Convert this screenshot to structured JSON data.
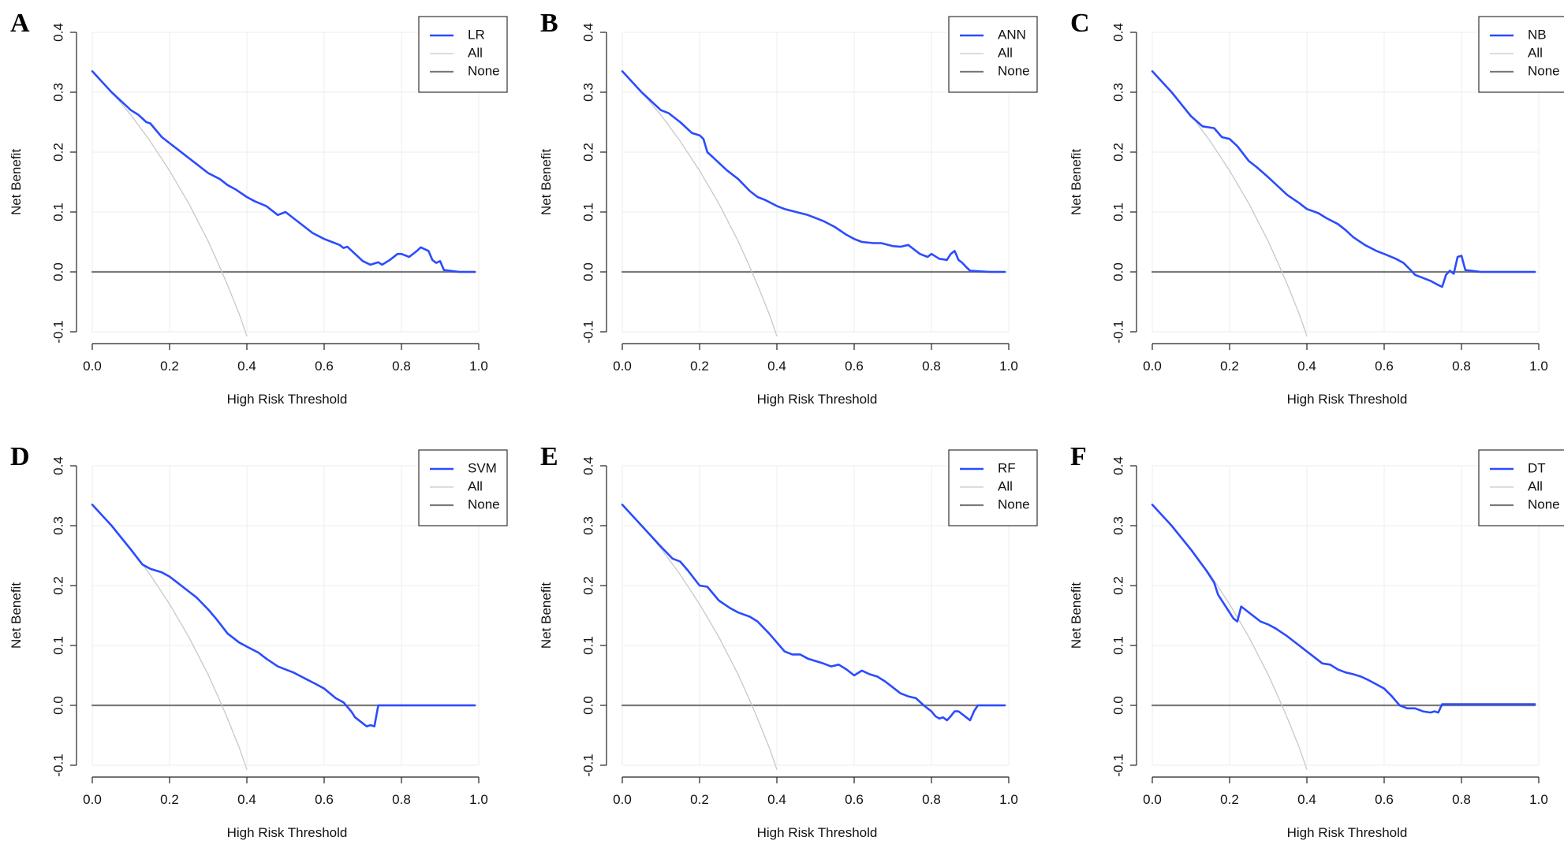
{
  "colors": {
    "model": "#2b4bff",
    "all": "#c8c8c8",
    "none": "#7a7a7a",
    "grid": "#ececec",
    "axis": "#222222"
  },
  "chart_data": [
    {
      "panel": "A",
      "type": "line",
      "xlabel": "High Risk Threshold",
      "ylabel": "Net Benefit",
      "xlim": [
        0,
        1
      ],
      "ylim": [
        -0.1,
        0.4
      ],
      "xticks": [
        "0.0",
        "0.2",
        "0.4",
        "0.6",
        "0.8",
        "1.0"
      ],
      "yticks": [
        "-0.1",
        "0.0",
        "0.1",
        "0.2",
        "0.3",
        "0.4"
      ],
      "legend": [
        "LR",
        "All",
        "None"
      ],
      "series": [
        {
          "name": "LR",
          "x": [
            0,
            0.05,
            0.1,
            0.12,
            0.14,
            0.15,
            0.18,
            0.2,
            0.22,
            0.25,
            0.27,
            0.3,
            0.33,
            0.35,
            0.37,
            0.4,
            0.42,
            0.45,
            0.48,
            0.5,
            0.52,
            0.55,
            0.57,
            0.6,
            0.62,
            0.64,
            0.65,
            0.66,
            0.68,
            0.7,
            0.72,
            0.74,
            0.75,
            0.77,
            0.79,
            0.8,
            0.82,
            0.84,
            0.85,
            0.87,
            0.88,
            0.89,
            0.9,
            0.91,
            0.95,
            0.99
          ],
          "y": [
            0.335,
            0.3,
            0.27,
            0.262,
            0.25,
            0.248,
            0.225,
            0.215,
            0.205,
            0.19,
            0.18,
            0.165,
            0.155,
            0.145,
            0.138,
            0.125,
            0.118,
            0.11,
            0.095,
            0.1,
            0.09,
            0.075,
            0.065,
            0.055,
            0.05,
            0.045,
            0.04,
            0.042,
            0.03,
            0.018,
            0.012,
            0.016,
            0.012,
            0.02,
            0.03,
            0.03,
            0.025,
            0.035,
            0.041,
            0.035,
            0.02,
            0.015,
            0.018,
            0.003,
            0,
            0
          ]
        },
        {
          "name": "All",
          "x": [
            0,
            0.05,
            0.1,
            0.15,
            0.2,
            0.25,
            0.3,
            0.33,
            0.35,
            0.38,
            0.4
          ],
          "y": [
            0.335,
            0.3,
            0.262,
            0.218,
            0.169,
            0.114,
            0.051,
            0.008,
            -0.022,
            -0.07,
            -0.107
          ]
        },
        {
          "name": "None",
          "x": [
            0,
            0.99
          ],
          "y": [
            0,
            0
          ]
        }
      ]
    },
    {
      "panel": "B",
      "type": "line",
      "xlabel": "High Risk Threshold",
      "ylabel": "Net Benefit",
      "xlim": [
        0,
        1
      ],
      "ylim": [
        -0.1,
        0.4
      ],
      "xticks": [
        "0.0",
        "0.2",
        "0.4",
        "0.6",
        "0.8",
        "1.0"
      ],
      "yticks": [
        "-0.1",
        "0.0",
        "0.1",
        "0.2",
        "0.3",
        "0.4"
      ],
      "legend": [
        "ANN",
        "All",
        "None"
      ],
      "series": [
        {
          "name": "ANN",
          "x": [
            0,
            0.05,
            0.1,
            0.12,
            0.15,
            0.18,
            0.2,
            0.21,
            0.22,
            0.24,
            0.27,
            0.3,
            0.33,
            0.35,
            0.37,
            0.4,
            0.42,
            0.45,
            0.48,
            0.5,
            0.52,
            0.55,
            0.58,
            0.6,
            0.62,
            0.65,
            0.67,
            0.7,
            0.72,
            0.74,
            0.75,
            0.77,
            0.79,
            0.8,
            0.82,
            0.84,
            0.85,
            0.86,
            0.87,
            0.88,
            0.89,
            0.9,
            0.95,
            0.99
          ],
          "y": [
            0.335,
            0.3,
            0.27,
            0.265,
            0.25,
            0.232,
            0.228,
            0.222,
            0.2,
            0.188,
            0.17,
            0.155,
            0.135,
            0.125,
            0.12,
            0.11,
            0.105,
            0.1,
            0.095,
            0.09,
            0.085,
            0.075,
            0.062,
            0.055,
            0.05,
            0.048,
            0.048,
            0.043,
            0.042,
            0.045,
            0.04,
            0.03,
            0.025,
            0.03,
            0.022,
            0.02,
            0.03,
            0.035,
            0.02,
            0.015,
            0.008,
            0.002,
            0,
            0
          ]
        },
        {
          "name": "All",
          "x": [
            0,
            0.05,
            0.1,
            0.15,
            0.2,
            0.25,
            0.3,
            0.33,
            0.35,
            0.38,
            0.4
          ],
          "y": [
            0.335,
            0.3,
            0.262,
            0.218,
            0.169,
            0.114,
            0.051,
            0.008,
            -0.022,
            -0.07,
            -0.107
          ]
        },
        {
          "name": "None",
          "x": [
            0,
            0.99
          ],
          "y": [
            0,
            0
          ]
        }
      ]
    },
    {
      "panel": "C",
      "type": "line",
      "xlabel": "High Risk Threshold",
      "ylabel": "Net Benefit",
      "xlim": [
        0,
        1
      ],
      "ylim": [
        -0.1,
        0.4
      ],
      "xticks": [
        "0.0",
        "0.2",
        "0.4",
        "0.6",
        "0.8",
        "1.0"
      ],
      "yticks": [
        "-0.1",
        "0.0",
        "0.1",
        "0.2",
        "0.3",
        "0.4"
      ],
      "legend": [
        "NB",
        "All",
        "None"
      ],
      "series": [
        {
          "name": "NB",
          "x": [
            0,
            0.05,
            0.1,
            0.13,
            0.16,
            0.18,
            0.2,
            0.22,
            0.25,
            0.27,
            0.3,
            0.33,
            0.35,
            0.38,
            0.4,
            0.43,
            0.45,
            0.48,
            0.5,
            0.52,
            0.55,
            0.58,
            0.6,
            0.63,
            0.65,
            0.67,
            0.68,
            0.7,
            0.72,
            0.74,
            0.75,
            0.76,
            0.77,
            0.78,
            0.79,
            0.8,
            0.81,
            0.85,
            0.99
          ],
          "y": [
            0.335,
            0.3,
            0.26,
            0.243,
            0.24,
            0.225,
            0.222,
            0.21,
            0.185,
            0.175,
            0.158,
            0.14,
            0.128,
            0.115,
            0.105,
            0.098,
            0.09,
            0.08,
            0.07,
            0.058,
            0.045,
            0.035,
            0.03,
            0.022,
            0.015,
            0.002,
            -0.005,
            -0.01,
            -0.015,
            -0.022,
            -0.025,
            -0.005,
            0.002,
            -0.003,
            0.025,
            0.027,
            0.003,
            0,
            0
          ]
        },
        {
          "name": "All",
          "x": [
            0,
            0.05,
            0.1,
            0.15,
            0.2,
            0.25,
            0.3,
            0.33,
            0.35,
            0.38,
            0.4
          ],
          "y": [
            0.335,
            0.3,
            0.262,
            0.218,
            0.169,
            0.114,
            0.051,
            0.008,
            -0.022,
            -0.07,
            -0.107
          ]
        },
        {
          "name": "None",
          "x": [
            0,
            0.99
          ],
          "y": [
            0,
            0
          ]
        }
      ]
    },
    {
      "panel": "D",
      "type": "line",
      "xlabel": "High Risk Threshold",
      "ylabel": "Net Benefit",
      "xlim": [
        0,
        1
      ],
      "ylim": [
        -0.1,
        0.4
      ],
      "xticks": [
        "0.0",
        "0.2",
        "0.4",
        "0.6",
        "0.8",
        "1.0"
      ],
      "yticks": [
        "-0.1",
        "0.0",
        "0.1",
        "0.2",
        "0.3",
        "0.4"
      ],
      "legend": [
        "SVM",
        "All",
        "None"
      ],
      "series": [
        {
          "name": "SVM",
          "x": [
            0,
            0.05,
            0.1,
            0.13,
            0.15,
            0.18,
            0.2,
            0.22,
            0.25,
            0.27,
            0.3,
            0.32,
            0.35,
            0.38,
            0.4,
            0.43,
            0.45,
            0.48,
            0.5,
            0.52,
            0.55,
            0.58,
            0.6,
            0.63,
            0.65,
            0.67,
            0.68,
            0.7,
            0.71,
            0.72,
            0.73,
            0.74,
            0.75,
            0.99
          ],
          "y": [
            0.335,
            0.3,
            0.26,
            0.235,
            0.228,
            0.222,
            0.215,
            0.205,
            0.19,
            0.18,
            0.16,
            0.145,
            0.12,
            0.105,
            0.098,
            0.088,
            0.078,
            0.065,
            0.06,
            0.055,
            0.045,
            0.035,
            0.028,
            0.012,
            0.005,
            -0.01,
            -0.02,
            -0.03,
            -0.035,
            -0.033,
            -0.035,
            0,
            0,
            0
          ]
        },
        {
          "name": "All",
          "x": [
            0,
            0.05,
            0.1,
            0.15,
            0.2,
            0.25,
            0.3,
            0.33,
            0.35,
            0.38,
            0.4
          ],
          "y": [
            0.335,
            0.3,
            0.262,
            0.218,
            0.169,
            0.114,
            0.051,
            0.008,
            -0.022,
            -0.07,
            -0.107
          ]
        },
        {
          "name": "None",
          "x": [
            0,
            0.99
          ],
          "y": [
            0,
            0
          ]
        }
      ]
    },
    {
      "panel": "E",
      "type": "line",
      "xlabel": "High Risk Threshold",
      "ylabel": "Net Benefit",
      "xlim": [
        0,
        1
      ],
      "ylim": [
        -0.1,
        0.4
      ],
      "xticks": [
        "0.0",
        "0.2",
        "0.4",
        "0.6",
        "0.8",
        "1.0"
      ],
      "yticks": [
        "-0.1",
        "0.0",
        "0.1",
        "0.2",
        "0.3",
        "0.4"
      ],
      "legend": [
        "RF",
        "All",
        "None"
      ],
      "series": [
        {
          "name": "RF",
          "x": [
            0,
            0.05,
            0.1,
            0.13,
            0.15,
            0.17,
            0.2,
            0.22,
            0.25,
            0.28,
            0.3,
            0.33,
            0.35,
            0.38,
            0.4,
            0.42,
            0.44,
            0.46,
            0.48,
            0.5,
            0.52,
            0.54,
            0.56,
            0.58,
            0.6,
            0.62,
            0.64,
            0.66,
            0.68,
            0.7,
            0.72,
            0.74,
            0.76,
            0.78,
            0.8,
            0.81,
            0.82,
            0.83,
            0.84,
            0.85,
            0.86,
            0.87,
            0.88,
            0.89,
            0.9,
            0.91,
            0.92,
            0.95,
            0.99
          ],
          "y": [
            0.335,
            0.3,
            0.265,
            0.245,
            0.24,
            0.225,
            0.2,
            0.198,
            0.175,
            0.162,
            0.155,
            0.148,
            0.14,
            0.12,
            0.105,
            0.09,
            0.085,
            0.085,
            0.078,
            0.074,
            0.07,
            0.065,
            0.068,
            0.06,
            0.05,
            0.058,
            0.052,
            0.048,
            0.04,
            0.03,
            0.02,
            0.015,
            0.012,
            0,
            -0.01,
            -0.018,
            -0.022,
            -0.02,
            -0.025,
            -0.018,
            -0.01,
            -0.01,
            -0.015,
            -0.02,
            -0.025,
            -0.01,
            0,
            0,
            0
          ]
        },
        {
          "name": "All",
          "x": [
            0,
            0.05,
            0.1,
            0.15,
            0.2,
            0.25,
            0.3,
            0.33,
            0.35,
            0.38,
            0.4
          ],
          "y": [
            0.335,
            0.3,
            0.262,
            0.218,
            0.169,
            0.114,
            0.051,
            0.008,
            -0.022,
            -0.07,
            -0.107
          ]
        },
        {
          "name": "None",
          "x": [
            0,
            0.99
          ],
          "y": [
            0,
            0
          ]
        }
      ]
    },
    {
      "panel": "F",
      "type": "line",
      "xlabel": "High Risk Threshold",
      "ylabel": "Net Benefit",
      "xlim": [
        0,
        1
      ],
      "ylim": [
        -0.1,
        0.4
      ],
      "xticks": [
        "0.0",
        "0.2",
        "0.4",
        "0.6",
        "0.8",
        "1.0"
      ],
      "yticks": [
        "-0.1",
        "0.0",
        "0.1",
        "0.2",
        "0.3",
        "0.4"
      ],
      "legend": [
        "DT",
        "All",
        "None"
      ],
      "series": [
        {
          "name": "DT",
          "x": [
            0,
            0.05,
            0.1,
            0.14,
            0.16,
            0.17,
            0.18,
            0.2,
            0.21,
            0.22,
            0.23,
            0.24,
            0.26,
            0.28,
            0.3,
            0.32,
            0.35,
            0.38,
            0.4,
            0.42,
            0.44,
            0.46,
            0.48,
            0.5,
            0.52,
            0.54,
            0.56,
            0.58,
            0.6,
            0.62,
            0.64,
            0.66,
            0.68,
            0.7,
            0.72,
            0.73,
            0.74,
            0.75,
            0.99
          ],
          "y": [
            0.335,
            0.3,
            0.26,
            0.225,
            0.205,
            0.185,
            0.175,
            0.155,
            0.145,
            0.14,
            0.165,
            0.16,
            0.15,
            0.14,
            0.135,
            0.128,
            0.115,
            0.1,
            0.09,
            0.08,
            0.07,
            0.068,
            0.06,
            0.055,
            0.052,
            0.048,
            0.042,
            0.035,
            0.028,
            0.015,
            0,
            -0.005,
            -0.005,
            -0.01,
            -0.012,
            -0.01,
            -0.012,
            0.002,
            0.002
          ]
        },
        {
          "name": "All",
          "x": [
            0,
            0.05,
            0.1,
            0.15,
            0.2,
            0.25,
            0.3,
            0.33,
            0.35,
            0.38,
            0.4
          ],
          "y": [
            0.335,
            0.3,
            0.262,
            0.218,
            0.169,
            0.114,
            0.051,
            0.008,
            -0.022,
            -0.07,
            -0.107
          ]
        },
        {
          "name": "None",
          "x": [
            0,
            0.99
          ],
          "y": [
            0,
            0
          ]
        }
      ]
    }
  ]
}
